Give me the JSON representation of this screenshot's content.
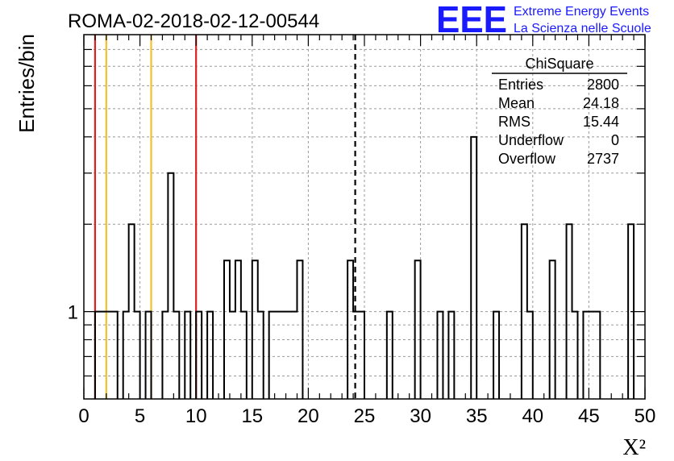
{
  "chart_data": {
    "type": "bar",
    "title": "ROMA-02-2018-02-12-00544",
    "xlabel": "X²",
    "ylabel": "Entries/bin",
    "xlim": [
      0,
      50
    ],
    "ylog": true,
    "ylim": [
      0.5,
      9
    ],
    "bin_width": 0.5,
    "grid": true,
    "x_ticks": [
      "0",
      "5",
      "10",
      "15",
      "20",
      "25",
      "30",
      "35",
      "40",
      "45",
      "50"
    ],
    "y_ticks": [
      "1"
    ],
    "bins": [
      {
        "x": 1.0,
        "y": 1
      },
      {
        "x": 1.5,
        "y": 1
      },
      {
        "x": 2.0,
        "y": 1
      },
      {
        "x": 2.5,
        "y": 1
      },
      {
        "x": 3.5,
        "y": 1
      },
      {
        "x": 4.0,
        "y": 2
      },
      {
        "x": 4.5,
        "y": 1
      },
      {
        "x": 5.5,
        "y": 1
      },
      {
        "x": 7.0,
        "y": 1
      },
      {
        "x": 7.5,
        "y": 3
      },
      {
        "x": 8.0,
        "y": 1
      },
      {
        "x": 9.0,
        "y": 1
      },
      {
        "x": 10.0,
        "y": 1
      },
      {
        "x": 11.0,
        "y": 1
      },
      {
        "x": 12.5,
        "y": 1.5
      },
      {
        "x": 13.0,
        "y": 1
      },
      {
        "x": 13.5,
        "y": 1.5
      },
      {
        "x": 14.0,
        "y": 1
      },
      {
        "x": 15.0,
        "y": 1.5
      },
      {
        "x": 15.5,
        "y": 1
      },
      {
        "x": 16.5,
        "y": 1
      },
      {
        "x": 17.0,
        "y": 1
      },
      {
        "x": 17.5,
        "y": 1
      },
      {
        "x": 18.0,
        "y": 1
      },
      {
        "x": 18.5,
        "y": 1
      },
      {
        "x": 19.0,
        "y": 1.5
      },
      {
        "x": 23.5,
        "y": 1.5
      },
      {
        "x": 24.0,
        "y": 1
      },
      {
        "x": 24.5,
        "y": 1
      },
      {
        "x": 27.0,
        "y": 1
      },
      {
        "x": 29.5,
        "y": 1.5
      },
      {
        "x": 31.5,
        "y": 1
      },
      {
        "x": 32.5,
        "y": 1
      },
      {
        "x": 34.5,
        "y": 4
      },
      {
        "x": 36.5,
        "y": 1
      },
      {
        "x": 39.0,
        "y": 2
      },
      {
        "x": 39.5,
        "y": 1
      },
      {
        "x": 41.5,
        "y": 1.5
      },
      {
        "x": 43.0,
        "y": 2
      },
      {
        "x": 43.5,
        "y": 1
      },
      {
        "x": 44.5,
        "y": 1
      },
      {
        "x": 45.0,
        "y": 1
      },
      {
        "x": 45.5,
        "y": 1
      },
      {
        "x": 48.5,
        "y": 2
      }
    ],
    "vertical_lines": [
      {
        "x": 1,
        "color": "#dc2020",
        "style": "solid"
      },
      {
        "x": 10,
        "color": "#dc2020",
        "style": "solid"
      },
      {
        "x": 2,
        "color": "#f2c12e",
        "style": "solid"
      },
      {
        "x": 6,
        "color": "#f2c12e",
        "style": "solid"
      },
      {
        "x": 24.18,
        "color": "#000000",
        "style": "dashed"
      }
    ],
    "stats_box": {
      "title": "ChiSquare",
      "rows": [
        {
          "label": "Entries",
          "value": "2800"
        },
        {
          "label": "Mean",
          "value": "24.18"
        },
        {
          "label": "RMS",
          "value": "15.44"
        },
        {
          "label": "Underflow",
          "value": "0"
        },
        {
          "label": "Overflow",
          "value": "2737"
        }
      ]
    }
  },
  "logo": {
    "mark": "EEE",
    "line1": "Extreme Energy Events",
    "line2": "La Scienza nelle Scuole",
    "color": "#1a1aff"
  }
}
